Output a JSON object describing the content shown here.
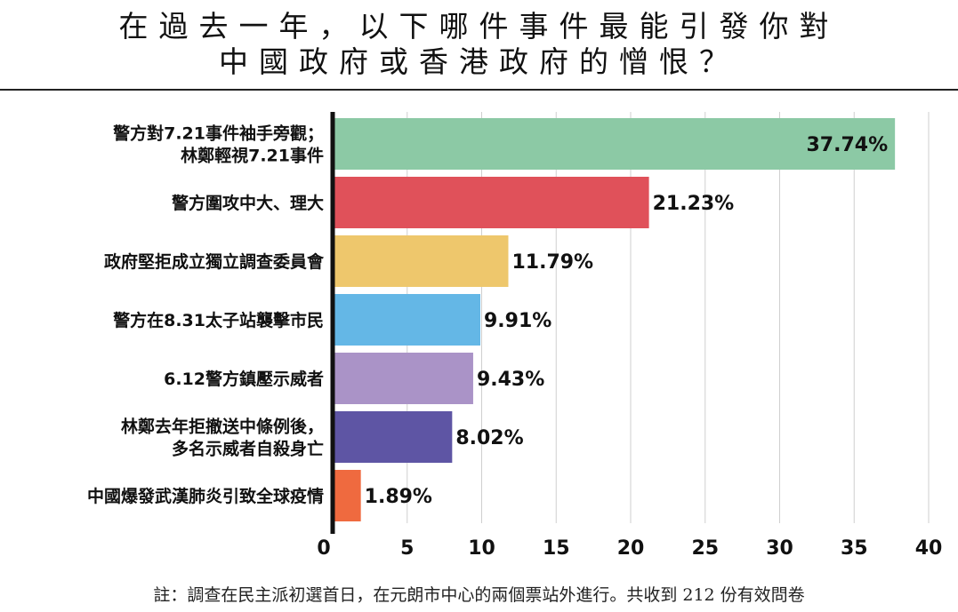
{
  "title": {
    "line1": "在過去一年，以下哪件事件最能引發你對",
    "line2": "中國政府或香港政府的憎恨？"
  },
  "note": "註：調查在民主派初選首日，在元朗市中心的兩個票站外進行。共收到 212 份有效問卷",
  "chart_data": {
    "type": "bar",
    "orientation": "horizontal",
    "categories": [
      [
        "警方對7.21事件袖手旁觀；",
        "林鄭輕視7.21事件"
      ],
      [
        "警方圍攻中大、理大"
      ],
      [
        "政府堅拒成立獨立調查委員會"
      ],
      [
        "警方在8.31太子站襲擊市民"
      ],
      [
        "6.12警方鎮壓示威者"
      ],
      [
        "林鄭去年拒撤送中條例後，",
        "多名示威者自殺身亡"
      ],
      [
        "中國爆發武漢肺炎引致全球疫情"
      ]
    ],
    "values": [
      37.74,
      21.23,
      11.79,
      9.91,
      9.43,
      8.02,
      1.89
    ],
    "value_labels": [
      "37.74%",
      "21.23%",
      "11.79%",
      "9.91%",
      "9.43%",
      "8.02%",
      "1.89%"
    ],
    "colors": [
      "#8cc9a5",
      "#e0515a",
      "#eec76c",
      "#64b7e6",
      "#aa93c7",
      "#5e55a4",
      "#ef6a3f"
    ],
    "label_inside": [
      true,
      false,
      false,
      false,
      false,
      false,
      false
    ],
    "xlim": [
      0,
      40
    ],
    "xticks": [
      0,
      5,
      10,
      15,
      20,
      25,
      30,
      35,
      40
    ],
    "xtick_labels": [
      "0",
      "5",
      "10",
      "15",
      "20",
      "25",
      "30",
      "35",
      "40"
    ],
    "grid": true
  }
}
